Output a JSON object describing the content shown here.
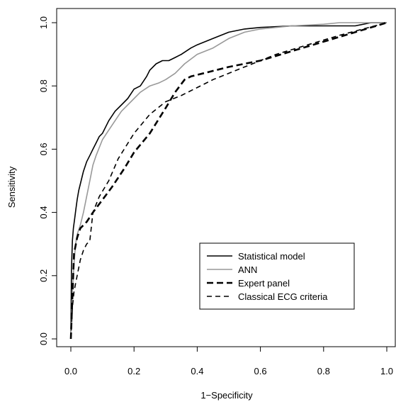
{
  "chart_data": {
    "type": "line",
    "title": "",
    "xlabel": "1−Specificity",
    "ylabel": "Sensitivity",
    "xlim": [
      0,
      1
    ],
    "ylim": [
      0,
      1
    ],
    "xticks": [
      "0.0",
      "0.2",
      "0.4",
      "0.6",
      "0.8",
      "1.0"
    ],
    "yticks": [
      "0.0",
      "0.2",
      "0.4",
      "0.6",
      "0.8",
      "1.0"
    ],
    "grid": false,
    "legend_position": "bottom-right",
    "series": [
      {
        "name": "Statistical model",
        "color": "#000000",
        "style": "solid",
        "x": [
          0,
          0.002,
          0.005,
          0.008,
          0.012,
          0.016,
          0.02,
          0.025,
          0.03,
          0.035,
          0.04,
          0.05,
          0.06,
          0.07,
          0.08,
          0.09,
          0.1,
          0.12,
          0.14,
          0.16,
          0.18,
          0.2,
          0.22,
          0.24,
          0.25,
          0.27,
          0.29,
          0.31,
          0.33,
          0.35,
          0.38,
          0.4,
          0.45,
          0.5,
          0.55,
          0.6,
          0.7,
          0.8,
          0.9,
          0.95,
          1.0
        ],
        "y": [
          0,
          0.22,
          0.31,
          0.35,
          0.38,
          0.41,
          0.44,
          0.47,
          0.49,
          0.51,
          0.53,
          0.56,
          0.58,
          0.6,
          0.62,
          0.64,
          0.65,
          0.69,
          0.72,
          0.74,
          0.76,
          0.79,
          0.8,
          0.83,
          0.85,
          0.87,
          0.88,
          0.88,
          0.89,
          0.9,
          0.92,
          0.93,
          0.95,
          0.97,
          0.98,
          0.985,
          0.99,
          0.99,
          0.99,
          1.0,
          1.0
        ]
      },
      {
        "name": "ANN",
        "color": "#999999",
        "style": "solid",
        "x": [
          0,
          0.005,
          0.01,
          0.015,
          0.02,
          0.03,
          0.04,
          0.05,
          0.06,
          0.07,
          0.08,
          0.1,
          0.12,
          0.14,
          0.16,
          0.18,
          0.2,
          0.22,
          0.25,
          0.28,
          0.3,
          0.33,
          0.36,
          0.4,
          0.45,
          0.5,
          0.55,
          0.6,
          0.7,
          0.8,
          0.85,
          0.9,
          1.0
        ],
        "y": [
          0,
          0.15,
          0.24,
          0.3,
          0.33,
          0.36,
          0.4,
          0.45,
          0.5,
          0.55,
          0.58,
          0.63,
          0.66,
          0.69,
          0.72,
          0.74,
          0.76,
          0.78,
          0.8,
          0.81,
          0.82,
          0.84,
          0.87,
          0.9,
          0.92,
          0.95,
          0.97,
          0.98,
          0.99,
          0.995,
          1.0,
          1.0,
          1.0
        ]
      },
      {
        "name": "Expert panel",
        "color": "#000000",
        "style": "thick-dash",
        "x": [
          0,
          0.01,
          0.02,
          0.03,
          0.05,
          0.07,
          0.1,
          0.13,
          0.17,
          0.2,
          0.25,
          0.3,
          0.33,
          0.36,
          0.38,
          0.5,
          0.6,
          0.7,
          0.8,
          0.9,
          1.0
        ],
        "y": [
          0,
          0.27,
          0.32,
          0.35,
          0.37,
          0.4,
          0.44,
          0.48,
          0.54,
          0.59,
          0.65,
          0.73,
          0.78,
          0.82,
          0.83,
          0.86,
          0.88,
          0.91,
          0.94,
          0.97,
          1.0
        ]
      },
      {
        "name": "Classical ECG criteria",
        "color": "#000000",
        "style": "dash",
        "x": [
          0,
          0.005,
          0.01,
          0.02,
          0.03,
          0.04,
          0.05,
          0.06,
          0.07,
          0.09,
          0.12,
          0.15,
          0.2,
          0.25,
          0.3,
          0.35,
          0.45,
          0.55,
          0.65,
          0.75,
          0.85,
          1.0
        ],
        "y": [
          0,
          0.1,
          0.15,
          0.2,
          0.25,
          0.28,
          0.3,
          0.31,
          0.4,
          0.45,
          0.5,
          0.57,
          0.65,
          0.71,
          0.75,
          0.77,
          0.82,
          0.86,
          0.9,
          0.93,
          0.96,
          1.0
        ]
      }
    ]
  }
}
